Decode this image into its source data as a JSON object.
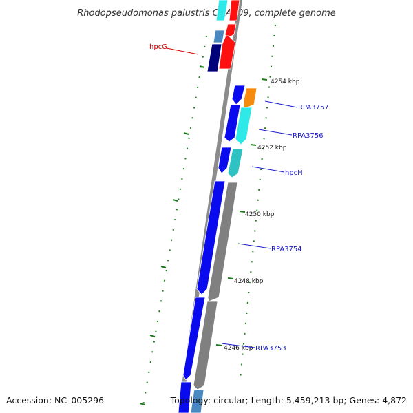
{
  "title": "Rhodopseudomonas palustris CGA009, complete genome",
  "footer": {
    "accession": "Accession: NC_005296",
    "summary": "Topology: circular; Length: 5,459,213 bp; Genes: 4,872"
  },
  "colors": {
    "backbone": "#8c8c8c",
    "dotted_ring": "#1a7a1a",
    "red_label": "#cc0000",
    "blue_label": "#1a1acc",
    "gene_blue": "#0a0aee",
    "gene_navy": "#00007a",
    "gene_cyan": "#2fe8e8",
    "gene_teal": "#2ec2c2",
    "gene_orange": "#f58a0c",
    "gene_gray": "#808080",
    "gene_red": "#ff1010",
    "gene_steel": "#4a88c0"
  },
  "scale_ticks": [
    {
      "label": "4254 kbp"
    },
    {
      "label": "4252 kbp"
    },
    {
      "label": "4250 kbp"
    },
    {
      "label": "4248 kbp"
    },
    {
      "label": "4246 kbp"
    }
  ],
  "gene_labels": [
    {
      "name": "hpcG",
      "color": "red"
    },
    {
      "name": "RPA3757",
      "color": "blue"
    },
    {
      "name": "RPA3756",
      "color": "blue"
    },
    {
      "name": "hpcH",
      "color": "blue"
    },
    {
      "name": "RPA3754",
      "color": "blue"
    },
    {
      "name": "RPA3753",
      "color": "blue"
    }
  ]
}
